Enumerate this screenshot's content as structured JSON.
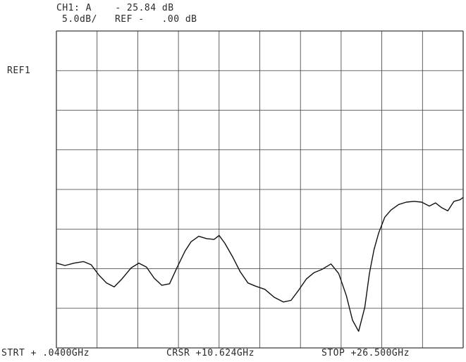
{
  "header": {
    "line1": "CH1: A    - 25.84 dB",
    "line2": "5.0dB/   REF -   .00 dB"
  },
  "ref_marker": "REF1",
  "footer": {
    "start": "STRT + .0400GHz",
    "cursor": "CRSR +10.624GHz",
    "stop": "STOP +26.500GHz"
  },
  "chart_data": {
    "type": "line",
    "title": "",
    "xlabel": "",
    "ylabel": "",
    "grid": true,
    "x_unit": "GHz",
    "y_unit": "dB",
    "xlim": [
      0.04,
      26.5
    ],
    "ylim": [
      -40,
      0
    ],
    "y_divisions": 8,
    "x_divisions": 10,
    "scale_db_per_div": 5.0,
    "reference_level_db": 0.0,
    "cursor": {
      "x": 10.624,
      "y": -25.84
    },
    "series": [
      {
        "x": [
          0.04,
          0.6,
          1.2,
          1.8,
          2.3,
          2.8,
          3.3,
          3.8,
          4.3,
          4.9,
          5.4,
          5.9,
          6.4,
          6.9,
          7.4,
          7.9,
          8.4,
          8.8,
          9.3,
          9.8,
          10.3,
          10.624,
          11.0,
          11.5,
          12.0,
          12.5,
          13.0,
          13.6,
          14.2,
          14.8,
          15.3,
          15.8,
          16.3,
          16.8,
          17.3,
          17.9,
          18.4,
          18.9,
          19.3,
          19.7,
          20.1,
          20.4,
          20.7,
          21.0,
          21.4,
          21.8,
          22.3,
          22.8,
          23.3,
          23.8,
          24.3,
          24.7,
          25.1,
          25.5,
          25.9,
          26.3,
          26.5
        ],
        "y": [
          -29.3,
          -29.6,
          -29.3,
          -29.1,
          -29.5,
          -30.8,
          -31.8,
          -32.3,
          -31.3,
          -29.9,
          -29.3,
          -29.8,
          -31.2,
          -32.1,
          -31.9,
          -29.8,
          -27.8,
          -26.6,
          -25.9,
          -26.2,
          -26.3,
          -25.8,
          -26.8,
          -28.5,
          -30.4,
          -31.8,
          -32.2,
          -32.6,
          -33.6,
          -34.2,
          -34.0,
          -32.7,
          -31.3,
          -30.5,
          -30.1,
          -29.4,
          -30.6,
          -33.4,
          -36.5,
          -37.9,
          -34.9,
          -30.6,
          -27.6,
          -25.5,
          -23.5,
          -22.6,
          -21.9,
          -21.6,
          -21.5,
          -21.6,
          -22.1,
          -21.7,
          -22.3,
          -22.7,
          -21.5,
          -21.3,
          -21.0
        ]
      }
    ]
  }
}
